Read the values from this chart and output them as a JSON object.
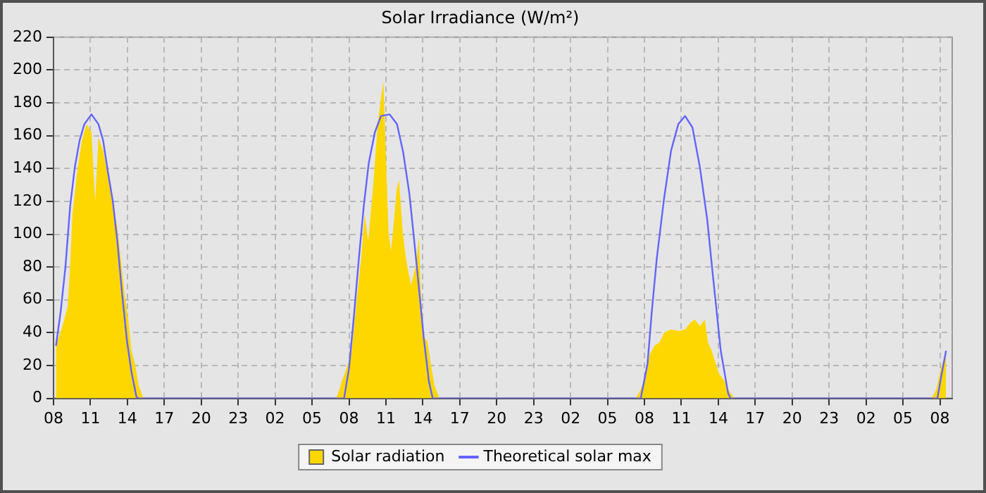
{
  "chart_data": {
    "type": "area",
    "title": "Solar Irradiance (W/m²)",
    "legend": "bottom",
    "grid": true,
    "marker": "none",
    "xlim": [
      "--01-01T08:00",
      "--01-04T09:00"
    ],
    "ylim": [
      0,
      220
    ],
    "xticks": [
      {
        "value": "--01-01T08:00",
        "label": "08"
      },
      {
        "value": "--01-01T11:00",
        "label": "11"
      },
      {
        "value": "--01-01T14:00",
        "label": "14"
      },
      {
        "value": "--01-01T17:00",
        "label": "17"
      },
      {
        "value": "--01-01T20:00",
        "label": "20"
      },
      {
        "value": "--01-01T23:00",
        "label": "23"
      },
      {
        "value": "--01-02T02:00",
        "label": "02"
      },
      {
        "value": "--01-02T05:00",
        "label": "05"
      },
      {
        "value": "--01-02T08:00",
        "label": "08"
      },
      {
        "value": "--01-02T11:00",
        "label": "11"
      },
      {
        "value": "--01-02T14:00",
        "label": "14"
      },
      {
        "value": "--01-02T17:00",
        "label": "17"
      },
      {
        "value": "--01-02T20:00",
        "label": "20"
      },
      {
        "value": "--01-02T23:00",
        "label": "23"
      },
      {
        "value": "--01-03T02:00",
        "label": "02"
      },
      {
        "value": "--01-03T05:00",
        "label": "05"
      },
      {
        "value": "--01-03T08:00",
        "label": "08"
      },
      {
        "value": "--01-03T11:00",
        "label": "11"
      },
      {
        "value": "--01-03T14:00",
        "label": "14"
      },
      {
        "value": "--01-03T17:00",
        "label": "17"
      },
      {
        "value": "--01-03T20:00",
        "label": "20"
      },
      {
        "value": "--01-03T23:00",
        "label": "23"
      },
      {
        "value": "--01-04T02:00",
        "label": "02"
      },
      {
        "value": "--01-04T05:00",
        "label": "05"
      },
      {
        "value": "--01-04T08:00",
        "label": "08"
      }
    ],
    "yticks": [
      0,
      20,
      40,
      60,
      80,
      100,
      120,
      140,
      160,
      180,
      200,
      220
    ],
    "series": [
      {
        "name": "Solar radiation",
        "type": "area",
        "color": "#ffd700",
        "x": [
          "--01-01T08:12",
          "--01-01T08:46",
          "--01-01T09:09",
          "--01-01T09:21",
          "--01-01T09:32",
          "--01-01T09:55",
          "--01-01T10:18",
          "--01-01T10:41",
          "--01-01T11:05",
          "--01-01T11:23",
          "--01-01T11:39",
          "--01-01T12:02",
          "--01-01T12:25",
          "--01-01T12:48",
          "--01-01T13:11",
          "--01-01T13:28",
          "--01-01T13:46",
          "--01-01T14:04",
          "--01-01T14:20",
          "--01-01T14:37",
          "--01-01T14:55",
          "--01-01T15:18",
          "--01-02T06:54",
          "--01-02T07:04",
          "--01-02T07:27",
          "--01-02T07:50",
          "--01-02T08:13",
          "--01-02T08:36",
          "--01-02T08:59",
          "--01-02T09:16",
          "--01-02T09:34",
          "--01-02T09:57",
          "--01-02T10:20",
          "--01-02T10:36",
          "--01-02T10:48",
          "--01-02T10:59",
          "--01-02T11:13",
          "--01-02T11:25",
          "--01-02T11:36",
          "--01-02T11:53",
          "--01-02T12:04",
          "--01-02T12:22",
          "--01-02T12:38",
          "--01-02T13:02",
          "--01-02T13:25",
          "--01-02T13:41",
          "--01-02T13:52",
          "--01-02T14:06",
          "--01-02T14:22",
          "--01-02T14:41",
          "--01-02T14:57",
          "--01-02T15:20",
          "--01-03T07:18",
          "--01-03T07:40",
          "--01-03T08:04",
          "--01-03T08:26",
          "--01-03T08:49",
          "--01-03T09:13",
          "--01-03T09:36",
          "--01-03T10:10",
          "--01-03T10:45",
          "--01-03T11:18",
          "--01-03T11:42",
          "--01-03T12:06",
          "--01-03T12:30",
          "--01-03T12:54",
          "--01-03T13:10",
          "--01-03T13:28",
          "--01-03T13:48",
          "--01-03T14:04",
          "--01-03T14:28",
          "--01-03T14:50",
          "--01-03T15:12",
          "--01-03T15:24",
          "--01-04T07:18",
          "--01-04T07:42",
          "--01-04T08:06",
          "--01-04T08:30"
        ],
        "values": [
          32,
          45,
          56,
          80,
          112,
          138,
          157,
          167,
          162,
          120,
          159,
          151,
          136,
          120,
          104,
          85,
          64,
          48,
          29,
          21,
          8,
          0,
          0,
          2,
          11,
          19,
          29,
          58,
          85,
          112,
          96,
          128,
          167,
          183,
          193,
          151,
          101,
          90,
          104,
          128,
          133,
          101,
          85,
          69,
          80,
          98,
          58,
          37,
          35,
          19,
          8,
          0,
          0,
          5,
          13,
          27,
          32,
          34,
          40,
          42,
          41,
          42,
          46,
          48,
          44,
          48,
          34,
          29,
          21,
          15,
          11,
          5,
          1,
          0,
          0,
          5,
          19,
          27
        ]
      },
      {
        "name": "Theoretical solar max",
        "type": "line",
        "color": "#6464ff",
        "x": [
          "--01-01T08:12",
          "--01-01T08:35",
          "--01-01T08:58",
          "--01-01T09:21",
          "--01-01T09:44",
          "--01-01T10:07",
          "--01-01T10:30",
          "--01-01T11:05",
          "--01-01T11:39",
          "--01-01T12:02",
          "--01-01T12:25",
          "--01-01T12:49",
          "--01-01T13:11",
          "--01-01T13:34",
          "--01-01T13:58",
          "--01-01T14:20",
          "--01-01T14:44",
          "--01-01T14:54",
          "--01-02T07:36",
          "--01-02T08:00",
          "--01-02T08:24",
          "--01-02T08:48",
          "--01-02T09:12",
          "--01-02T09:36",
          "--01-02T10:06",
          "--01-02T10:36",
          "--01-02T11:18",
          "--01-02T11:54",
          "--01-02T12:24",
          "--01-02T12:54",
          "--01-02T13:18",
          "--01-02T13:42",
          "--01-02T14:06",
          "--01-02T14:30",
          "--01-02T14:48",
          "--01-03T07:42",
          "--01-03T08:15",
          "--01-03T08:36",
          "--01-03T09:00",
          "--01-03T09:36",
          "--01-03T10:10",
          "--01-03T10:45",
          "--01-03T11:18",
          "--01-03T11:54",
          "--01-03T12:30",
          "--01-03T13:06",
          "--01-03T13:36",
          "--01-03T14:12",
          "--01-03T14:48",
          "--01-03T15:00",
          "--01-04T07:48",
          "--01-04T08:06",
          "--01-04T08:30"
        ],
        "values": [
          32,
          53,
          80,
          117,
          141,
          157,
          167,
          173,
          167,
          157,
          138,
          120,
          96,
          64,
          35,
          16,
          1,
          0,
          0,
          18,
          50,
          85,
          117,
          143,
          162,
          172,
          173,
          167,
          150,
          125,
          96,
          66,
          35,
          10,
          0,
          0,
          21,
          53,
          85,
          122,
          151,
          167,
          172,
          165,
          141,
          109,
          72,
          29,
          3,
          0,
          0,
          13,
          29
        ]
      }
    ]
  }
}
